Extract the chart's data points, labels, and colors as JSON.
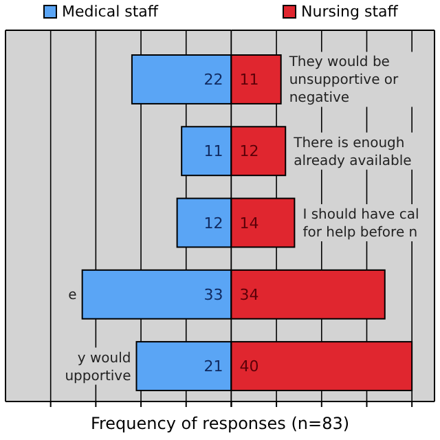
{
  "chart_data": [
    {
      "type": "bar",
      "orientation": "horizontal",
      "categories": [
        null,
        null,
        null,
        "e",
        "y would\nupportive"
      ],
      "series": [
        {
          "name": "Medical staff",
          "color": "#5aa5f5",
          "values": [
            22,
            11,
            12,
            33,
            21
          ]
        }
      ],
      "data_labels": true,
      "xlim": [
        50,
        0
      ],
      "xticks": [
        {
          "value": 40,
          "label": null
        },
        {
          "value": 30,
          "label": null
        },
        {
          "value": 20,
          "label": null
        },
        {
          "value": 10,
          "label": null
        },
        {
          "value": 0,
          "label": null
        }
      ],
      "grid": "x",
      "legend": "top left"
    },
    {
      "type": "bar",
      "orientation": "horizontal",
      "xlabel": "Frequency of responses (n=83)",
      "categories": [
        "They would be\nunsupportive or\nnegative",
        "There is enough\nalready available",
        "I should have cal\nfor help before n",
        null,
        null
      ],
      "series": [
        {
          "name": "Nursing staff",
          "color": "#e0262f",
          "values": [
            11,
            12,
            14,
            34,
            40
          ]
        }
      ],
      "data_labels": true,
      "xlim": [
        0,
        45
      ],
      "xticks": [
        {
          "value": 0,
          "label": null
        },
        {
          "value": 10,
          "label": null
        },
        {
          "value": 20,
          "label": null
        },
        {
          "value": 30,
          "label": null
        },
        {
          "value": 40,
          "label": null
        }
      ],
      "grid": "x",
      "legend": "top right"
    }
  ]
}
